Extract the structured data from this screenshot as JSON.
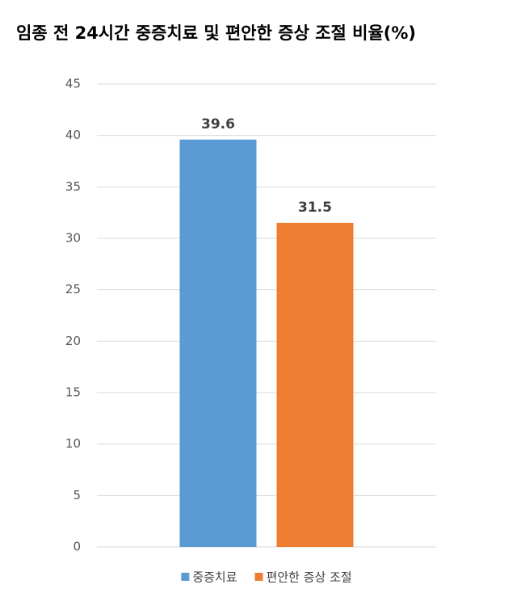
{
  "chart_data": {
    "type": "bar",
    "title": "임종 전 24시간 중증치료 및 편안한 증상 조절 비율(%)",
    "categories": [
      null
    ],
    "series": [
      {
        "name": "중증치료",
        "color": "#5b9bd5",
        "values": [
          39.6
        ]
      },
      {
        "name": "편안한 증상 조절",
        "color": "#ed7d31",
        "values": [
          31.5
        ]
      }
    ],
    "ylim": [
      0,
      45
    ],
    "yticks": [
      0,
      5,
      10,
      15,
      20,
      25,
      30,
      35,
      40,
      45
    ],
    "grid": true,
    "legend": "bottom",
    "data_labels": true
  }
}
